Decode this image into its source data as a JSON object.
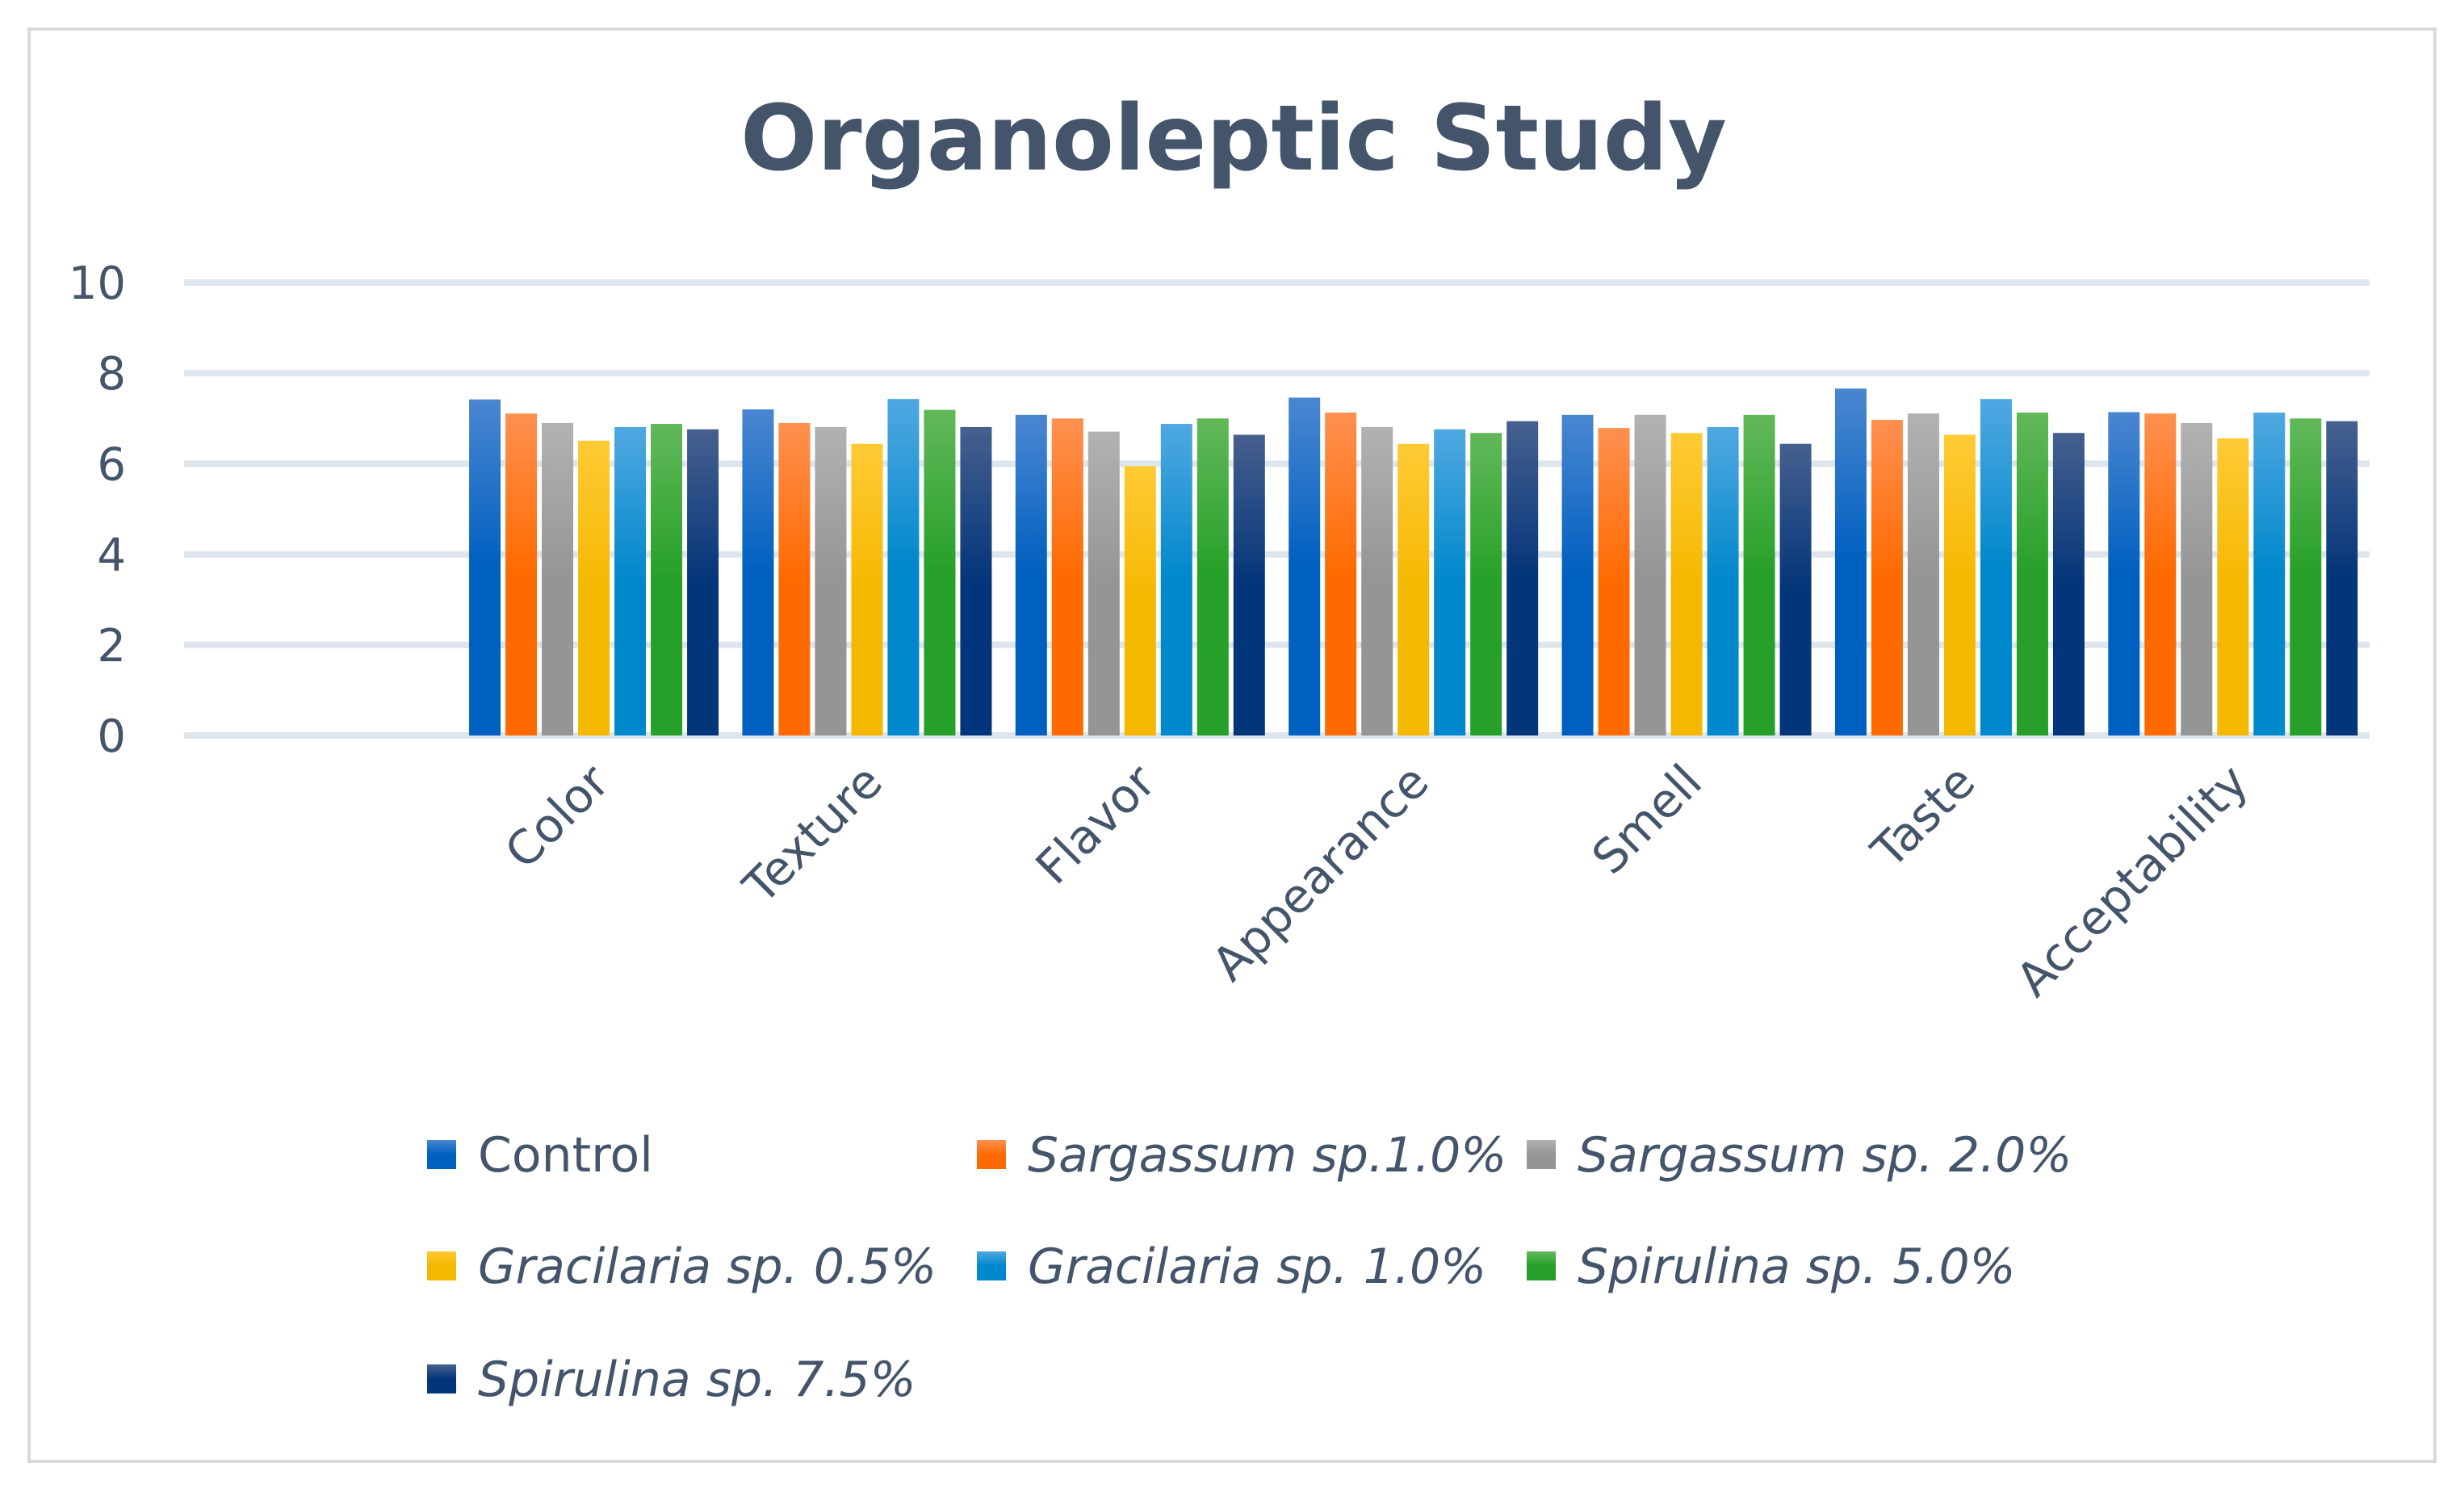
{
  "chart_data": {
    "type": "bar",
    "title": "Organoleptic Study",
    "xlabel": "",
    "ylabel": "",
    "ylim": [
      0,
      10
    ],
    "yticks": [
      "0",
      "2",
      "4",
      "6",
      "8",
      "10"
    ],
    "grid": true,
    "legend_position": "bottom",
    "categories": [
      "",
      "Color",
      "Texture",
      "Flavor",
      "Appearance",
      "Smell",
      "Taste",
      "Acceptability"
    ],
    "series": [
      {
        "name": "Control",
        "italic": false,
        "color_top": "#4a86d0",
        "color_bottom": "#0060c0",
        "values": [
          null,
          7.42,
          7.2,
          7.08,
          7.46,
          7.08,
          7.66,
          7.14
        ]
      },
      {
        "name": "Sargassum sp.1.0%",
        "italic": true,
        "color_top": "#ff9050",
        "color_bottom": "#ff6a00",
        "values": [
          null,
          7.11,
          6.9,
          7.0,
          7.13,
          6.79,
          6.97,
          7.11
        ]
      },
      {
        "name": "Sargassum sp. 2.0%",
        "italic": true,
        "color_top": "#b2b2b2",
        "color_bottom": "#959595",
        "values": [
          null,
          6.9,
          6.81,
          6.71,
          6.81,
          7.08,
          7.11,
          6.9
        ]
      },
      {
        "name": "Gracilaria sp. 0.5%",
        "italic": true,
        "color_top": "#ffca35",
        "color_bottom": "#f5b800",
        "values": [
          null,
          6.51,
          6.44,
          5.95,
          6.44,
          6.68,
          6.64,
          6.56
        ]
      },
      {
        "name": "Gracilaria sp. 1.0%",
        "italic": true,
        "color_top": "#50a8e0",
        "color_bottom": "#0088cc",
        "values": [
          null,
          6.81,
          7.43,
          6.88,
          6.76,
          6.81,
          7.43,
          7.13
        ]
      },
      {
        "name": "Spirulina sp. 5.0%",
        "italic": true,
        "color_top": "#62b85a",
        "color_bottom": "#26a028",
        "values": [
          null,
          6.88,
          7.19,
          7.0,
          6.68,
          7.08,
          7.13,
          7.0
        ]
      },
      {
        "name": "Spirulina sp. 7.5%",
        "italic": true,
        "color_top": "#46608e",
        "color_bottom": "#03357a",
        "values": [
          null,
          6.76,
          6.81,
          6.64,
          6.94,
          6.44,
          6.68,
          6.94
        ]
      }
    ]
  }
}
